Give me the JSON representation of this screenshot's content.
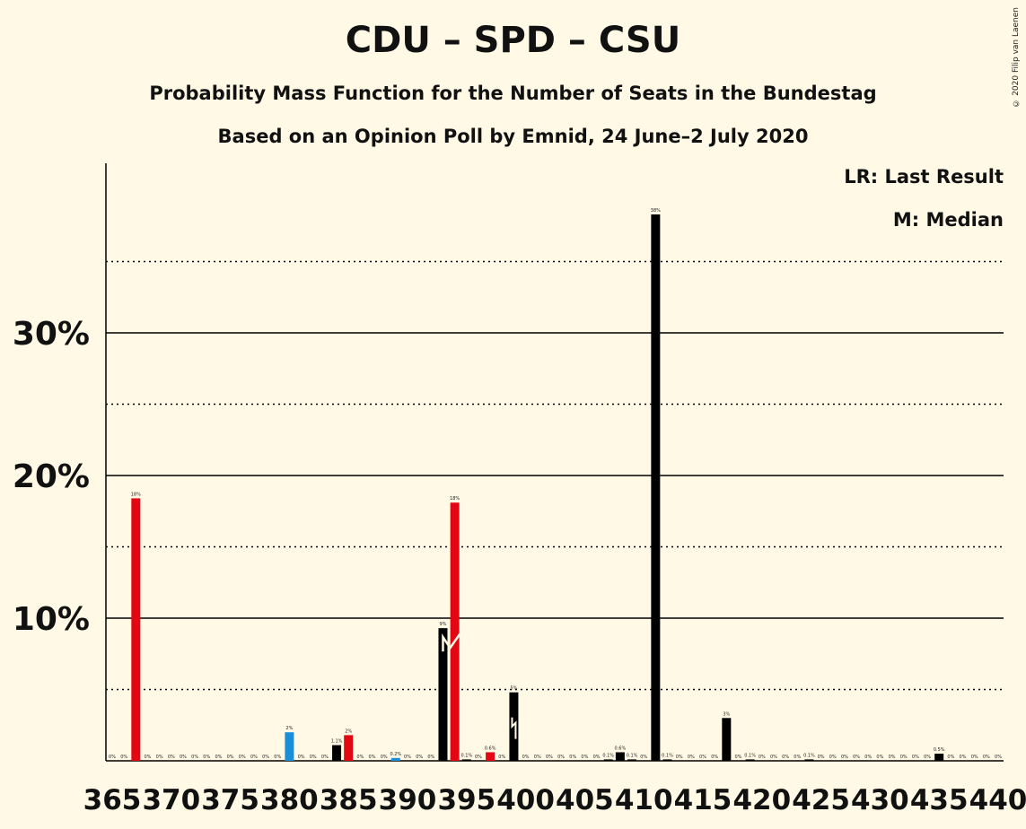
{
  "title": "CDU – SPD – CSU",
  "subtitle": "Probability Mass Function for the Number of Seats in the Bundestag",
  "subtitle2": "Based on an Opinion Poll by Emnid, 24 June–2 July 2020",
  "copyright": "© 2020 Filip van Laenen",
  "legend": {
    "lr": "LR: Last Result",
    "m": "M: Median"
  },
  "colors": {
    "background": "#FFF9E5",
    "default": "#000000",
    "last_result": "#E30613",
    "highlight": "#1A8FD8"
  },
  "chart_data": {
    "type": "bar",
    "xlabel": "",
    "ylabel": "",
    "xlim": [
      365,
      440
    ],
    "ylim": [
      0,
      40
    ],
    "yticks": [
      {
        "value": 10,
        "label": "10%"
      },
      {
        "value": 20,
        "label": "20%"
      },
      {
        "value": 30,
        "label": "30%"
      }
    ],
    "dotted_grid": [
      5,
      15,
      25,
      35
    ],
    "xticks": [
      365,
      370,
      375,
      380,
      385,
      390,
      395,
      400,
      405,
      410,
      415,
      420,
      425,
      430,
      435,
      440
    ],
    "last_result": 395,
    "median": 399,
    "bars": [
      {
        "seats": 365,
        "value": 0,
        "label": "0%",
        "color": "default"
      },
      {
        "seats": 366,
        "value": 0,
        "label": "0%",
        "color": "default"
      },
      {
        "seats": 367,
        "value": 18.4,
        "label": "18%",
        "color": "last_result"
      },
      {
        "seats": 368,
        "value": 0,
        "label": "0%",
        "color": "default"
      },
      {
        "seats": 369,
        "value": 0,
        "label": "0%",
        "color": "default"
      },
      {
        "seats": 370,
        "value": 0,
        "label": "0%",
        "color": "default"
      },
      {
        "seats": 371,
        "value": 0,
        "label": "0%",
        "color": "default"
      },
      {
        "seats": 372,
        "value": 0,
        "label": "0%",
        "color": "default"
      },
      {
        "seats": 373,
        "value": 0,
        "label": "0%",
        "color": "default"
      },
      {
        "seats": 374,
        "value": 0,
        "label": "0%",
        "color": "default"
      },
      {
        "seats": 375,
        "value": 0,
        "label": "0%",
        "color": "default"
      },
      {
        "seats": 376,
        "value": 0,
        "label": "0%",
        "color": "default"
      },
      {
        "seats": 377,
        "value": 0,
        "label": "0%",
        "color": "default"
      },
      {
        "seats": 378,
        "value": 0,
        "label": "0%",
        "color": "default"
      },
      {
        "seats": 379,
        "value": 0,
        "label": "0%",
        "color": "default"
      },
      {
        "seats": 380,
        "value": 2.0,
        "label": "2%",
        "color": "highlight"
      },
      {
        "seats": 381,
        "value": 0,
        "label": "0%",
        "color": "default"
      },
      {
        "seats": 382,
        "value": 0,
        "label": "0%",
        "color": "default"
      },
      {
        "seats": 383,
        "value": 0,
        "label": "0%",
        "color": "default"
      },
      {
        "seats": 384,
        "value": 1.1,
        "label": "1.1%",
        "color": "default"
      },
      {
        "seats": 385,
        "value": 1.8,
        "label": "2%",
        "color": "last_result"
      },
      {
        "seats": 386,
        "value": 0,
        "label": "0%",
        "color": "default"
      },
      {
        "seats": 387,
        "value": 0,
        "label": "0%",
        "color": "default"
      },
      {
        "seats": 388,
        "value": 0,
        "label": "0%",
        "color": "default"
      },
      {
        "seats": 389,
        "value": 0.2,
        "label": "0.2%",
        "color": "highlight"
      },
      {
        "seats": 390,
        "value": 0,
        "label": "0%",
        "color": "default"
      },
      {
        "seats": 391,
        "value": 0,
        "label": "0%",
        "color": "default"
      },
      {
        "seats": 392,
        "value": 0,
        "label": "0%",
        "color": "default"
      },
      {
        "seats": 393,
        "value": 9.3,
        "label": "9%",
        "color": "default"
      },
      {
        "seats": 394,
        "value": 18.1,
        "label": "18%",
        "color": "last_result"
      },
      {
        "seats": 395,
        "value": 0.1,
        "label": "0.1%",
        "color": "default"
      },
      {
        "seats": 396,
        "value": 0,
        "label": "0%",
        "color": "default"
      },
      {
        "seats": 397,
        "value": 0.6,
        "label": "0.6%",
        "color": "last_result"
      },
      {
        "seats": 398,
        "value": 0,
        "label": "0%",
        "color": "default"
      },
      {
        "seats": 399,
        "value": 4.8,
        "label": "5%",
        "color": "default"
      },
      {
        "seats": 400,
        "value": 0,
        "label": "0%",
        "color": "default"
      },
      {
        "seats": 401,
        "value": 0,
        "label": "0%",
        "color": "default"
      },
      {
        "seats": 402,
        "value": 0,
        "label": "0%",
        "color": "default"
      },
      {
        "seats": 403,
        "value": 0,
        "label": "0%",
        "color": "default"
      },
      {
        "seats": 404,
        "value": 0,
        "label": "0%",
        "color": "default"
      },
      {
        "seats": 405,
        "value": 0,
        "label": "0%",
        "color": "default"
      },
      {
        "seats": 406,
        "value": 0,
        "label": "0%",
        "color": "default"
      },
      {
        "seats": 407,
        "value": 0.1,
        "label": "0.1%",
        "color": "default"
      },
      {
        "seats": 408,
        "value": 0.6,
        "label": "0.6%",
        "color": "default"
      },
      {
        "seats": 409,
        "value": 0.1,
        "label": "0.1%",
        "color": "default"
      },
      {
        "seats": 410,
        "value": 0,
        "label": "0%",
        "color": "default"
      },
      {
        "seats": 411,
        "value": 38.3,
        "label": "38%",
        "color": "default"
      },
      {
        "seats": 412,
        "value": 0.1,
        "label": "0.1%",
        "color": "default"
      },
      {
        "seats": 413,
        "value": 0,
        "label": "0%",
        "color": "default"
      },
      {
        "seats": 414,
        "value": 0,
        "label": "0%",
        "color": "default"
      },
      {
        "seats": 415,
        "value": 0,
        "label": "0%",
        "color": "default"
      },
      {
        "seats": 416,
        "value": 0,
        "label": "0%",
        "color": "default"
      },
      {
        "seats": 417,
        "value": 3.0,
        "label": "3%",
        "color": "default"
      },
      {
        "seats": 418,
        "value": 0,
        "label": "0%",
        "color": "default"
      },
      {
        "seats": 419,
        "value": 0.1,
        "label": "0.1%",
        "color": "default"
      },
      {
        "seats": 420,
        "value": 0,
        "label": "0%",
        "color": "default"
      },
      {
        "seats": 421,
        "value": 0,
        "label": "0%",
        "color": "default"
      },
      {
        "seats": 422,
        "value": 0,
        "label": "0%",
        "color": "default"
      },
      {
        "seats": 423,
        "value": 0,
        "label": "0%",
        "color": "default"
      },
      {
        "seats": 424,
        "value": 0.1,
        "label": "0.1%",
        "color": "default"
      },
      {
        "seats": 425,
        "value": 0,
        "label": "0%",
        "color": "default"
      },
      {
        "seats": 426,
        "value": 0,
        "label": "0%",
        "color": "default"
      },
      {
        "seats": 427,
        "value": 0,
        "label": "0%",
        "color": "default"
      },
      {
        "seats": 428,
        "value": 0,
        "label": "0%",
        "color": "default"
      },
      {
        "seats": 429,
        "value": 0,
        "label": "0%",
        "color": "default"
      },
      {
        "seats": 430,
        "value": 0,
        "label": "0%",
        "color": "default"
      },
      {
        "seats": 431,
        "value": 0,
        "label": "0%",
        "color": "default"
      },
      {
        "seats": 432,
        "value": 0,
        "label": "0%",
        "color": "default"
      },
      {
        "seats": 433,
        "value": 0,
        "label": "0%",
        "color": "default"
      },
      {
        "seats": 434,
        "value": 0,
        "label": "0%",
        "color": "default"
      },
      {
        "seats": 435,
        "value": 0.5,
        "label": "0.5%",
        "color": "default"
      },
      {
        "seats": 436,
        "value": 0,
        "label": "0%",
        "color": "default"
      },
      {
        "seats": 437,
        "value": 0,
        "label": "0%",
        "color": "default"
      },
      {
        "seats": 438,
        "value": 0,
        "label": "0%",
        "color": "default"
      },
      {
        "seats": 439,
        "value": 0,
        "label": "0%",
        "color": "default"
      },
      {
        "seats": 440,
        "value": 0,
        "label": "0%",
        "color": "default"
      }
    ]
  }
}
